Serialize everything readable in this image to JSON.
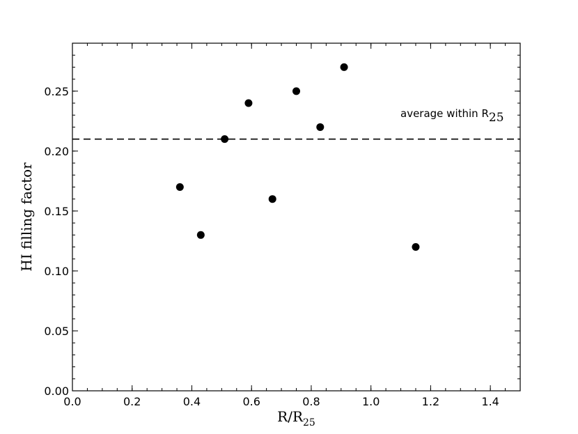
{
  "chart_data": {
    "type": "scatter",
    "xlabel": {
      "main": "R/R",
      "sub": "25"
    },
    "ylabel": "HI filling factor",
    "xlim": [
      0.0,
      1.5
    ],
    "ylim": [
      0.0,
      0.29
    ],
    "xticks": [
      0.0,
      0.2,
      0.4,
      0.6,
      0.8,
      1.0,
      1.2,
      1.4
    ],
    "yticks": [
      0.0,
      0.05,
      0.1,
      0.15,
      0.2,
      0.25
    ],
    "xtick_labels": [
      "0.0",
      "0.2",
      "0.4",
      "0.6",
      "0.8",
      "1.0",
      "1.2",
      "1.4"
    ],
    "ytick_labels": [
      "0.00",
      "0.05",
      "0.10",
      "0.15",
      "0.20",
      "0.25"
    ],
    "grid": false,
    "series": [
      {
        "x": [
          0.36,
          0.43,
          0.51,
          0.59,
          0.67,
          0.75,
          0.83,
          0.91,
          1.15
        ],
        "y": [
          0.17,
          0.13,
          0.21,
          0.24,
          0.16,
          0.25,
          0.22,
          0.27,
          0.12
        ]
      }
    ],
    "reference_line": {
      "y": 0.21,
      "style": "dashed"
    },
    "annotation": {
      "text": "average within R",
      "sub": "25"
    }
  },
  "colors": {
    "marker": "#000000",
    "axis": "#000000",
    "background": "#ffffff"
  }
}
